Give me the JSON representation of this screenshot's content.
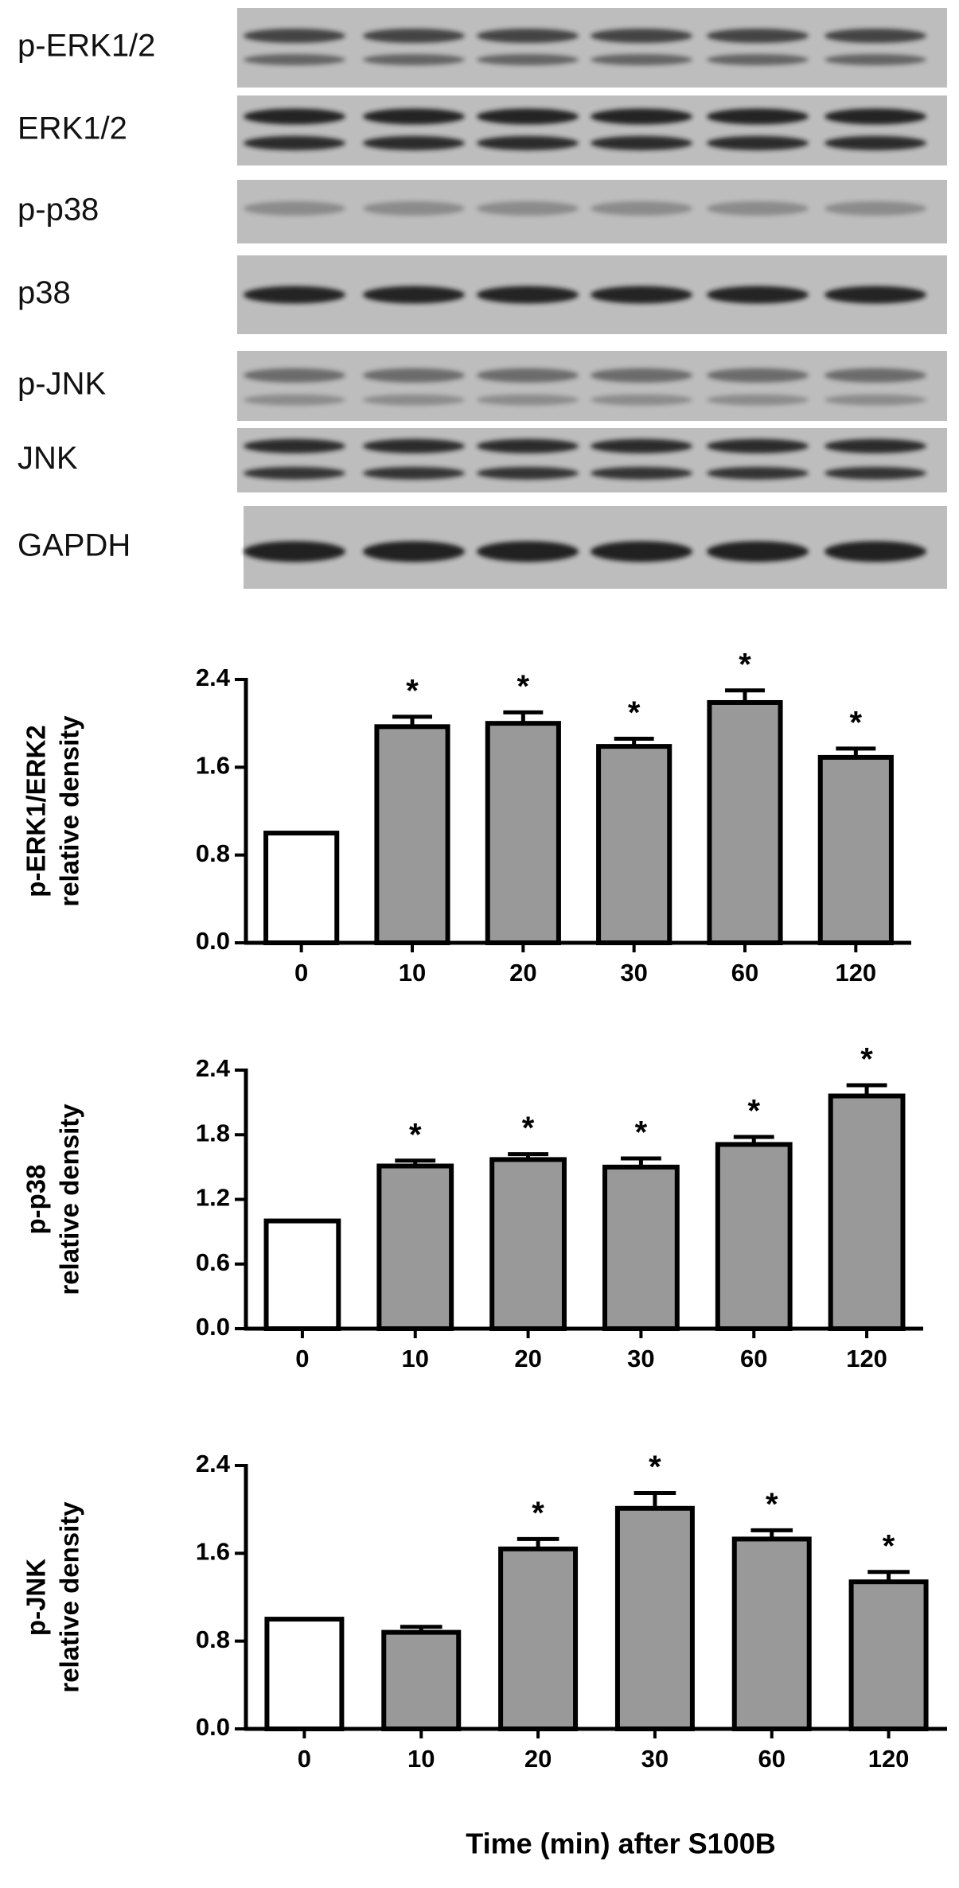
{
  "blots": {
    "labels": [
      "p-ERK1/2",
      "ERK1/2",
      "p-p38",
      "p38",
      "p-JNK",
      "JNK",
      "GAPDH"
    ]
  },
  "chart_data": [
    {
      "type": "bar",
      "ylabel": [
        "p-ERK1/ERK2",
        "relative density"
      ],
      "categories": [
        "0",
        "10",
        "20",
        "30",
        "60",
        "120"
      ],
      "values": [
        1.0,
        1.97,
        2.0,
        1.79,
        2.19,
        1.69
      ],
      "errors": [
        0,
        0.09,
        0.1,
        0.07,
        0.11,
        0.08
      ],
      "significance": [
        null,
        "*",
        "*",
        "*",
        "*",
        "*"
      ],
      "bar_colors": [
        "#ffffff",
        "#999999",
        "#999999",
        "#999999",
        "#999999",
        "#999999"
      ],
      "ylim": [
        0,
        2.4
      ],
      "yticks": [
        {
          "value": 0,
          "label": "0.0"
        },
        0.8,
        1.6,
        2.4
      ]
    },
    {
      "type": "bar",
      "ylabel": [
        "p-p38",
        "relative density"
      ],
      "categories": [
        "0",
        "10",
        "20",
        "30",
        "60",
        "120"
      ],
      "values": [
        1.0,
        1.51,
        1.57,
        1.5,
        1.71,
        2.16
      ],
      "errors": [
        0,
        0.05,
        0.05,
        0.08,
        0.07,
        0.1
      ],
      "significance": [
        null,
        "*",
        "*",
        "*",
        "*",
        "*"
      ],
      "bar_colors": [
        "#ffffff",
        "#999999",
        "#999999",
        "#999999",
        "#999999",
        "#999999"
      ],
      "ylim": [
        0,
        2.4
      ],
      "yticks": [
        {
          "value": 0,
          "label": "0.0"
        },
        0.6,
        1.2,
        1.8,
        2.4
      ]
    },
    {
      "type": "bar",
      "ylabel": [
        "p-JNK",
        "relative density"
      ],
      "categories": [
        "0",
        "10",
        "20",
        "30",
        "60",
        "120"
      ],
      "values": [
        1.0,
        0.88,
        1.64,
        2.01,
        1.73,
        1.34
      ],
      "errors": [
        0,
        0.05,
        0.09,
        0.14,
        0.08,
        0.09
      ],
      "significance": [
        null,
        null,
        "*",
        "*",
        "*",
        "*"
      ],
      "bar_colors": [
        "#ffffff",
        "#999999",
        "#999999",
        "#999999",
        "#999999",
        "#999999"
      ],
      "ylim": [
        0,
        2.4
      ],
      "yticks": [
        {
          "value": 0,
          "label": "0.0"
        },
        0.8,
        1.6,
        2.4
      ]
    }
  ],
  "common_xlabel": "Time (min) after S100B"
}
